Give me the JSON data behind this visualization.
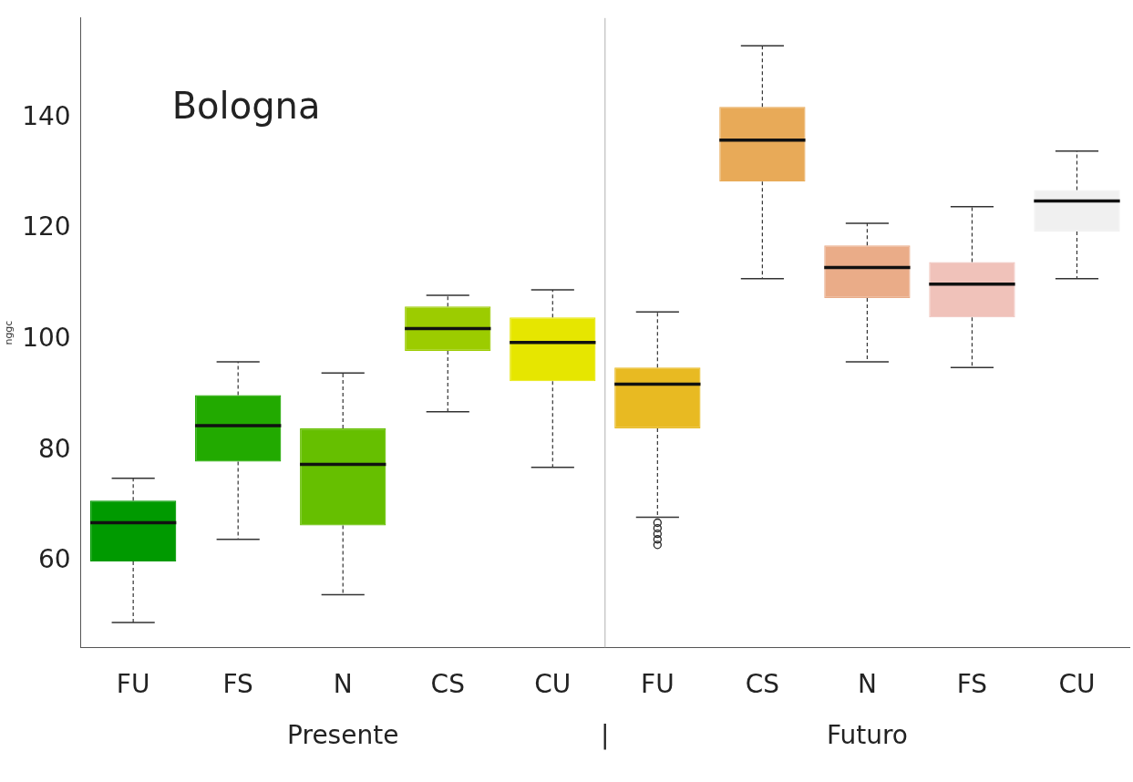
{
  "chart_data": {
    "type": "box",
    "ylabel": "nggc",
    "categories": [
      "FU",
      "FS",
      "N",
      "CS",
      "CU",
      "FU",
      "CS",
      "N",
      "FS",
      "CU"
    ],
    "colors": [
      "#009a00",
      "#22aa00",
      "#66bf00",
      "#9ccc00",
      "#e6e600",
      "#e8ba22",
      "#e8aa58",
      "#eaac88",
      "#f0c2ba",
      "#f0f0f0"
    ],
    "boxes": [
      {
        "low": 49,
        "q1": 60,
        "median": 67,
        "q3": 71,
        "high": 75
      },
      {
        "low": 64,
        "q1": 78,
        "median": 84.5,
        "q3": 90,
        "high": 96
      },
      {
        "low": 54,
        "q1": 66.5,
        "median": 77.5,
        "q3": 84,
        "high": 94
      },
      {
        "low": 87,
        "q1": 98,
        "median": 102,
        "q3": 106,
        "high": 108
      },
      {
        "low": 77,
        "q1": 92.5,
        "median": 99.5,
        "q3": 104,
        "high": 109
      },
      {
        "low": 68,
        "q1": 84,
        "median": 92,
        "q3": 95,
        "high": 105,
        "outliers": [
          67,
          66,
          65,
          64,
          63
        ]
      },
      {
        "low": 111,
        "q1": 128.5,
        "median": 136,
        "q3": 142,
        "high": 153
      },
      {
        "low": 96,
        "q1": 107.5,
        "median": 113,
        "q3": 117,
        "high": 121
      },
      {
        "low": 95,
        "q1": 104,
        "median": 110,
        "q3": 114,
        "high": 124
      },
      {
        "low": 111,
        "q1": 119.5,
        "median": 125,
        "q3": 127,
        "high": 134
      }
    ],
    "ylim": [
      44.5,
      158
    ],
    "yticks": [
      60,
      80,
      100,
      120,
      140
    ],
    "annotations": [
      "Bologna",
      "Presente",
      "|",
      "Futuro"
    ]
  }
}
